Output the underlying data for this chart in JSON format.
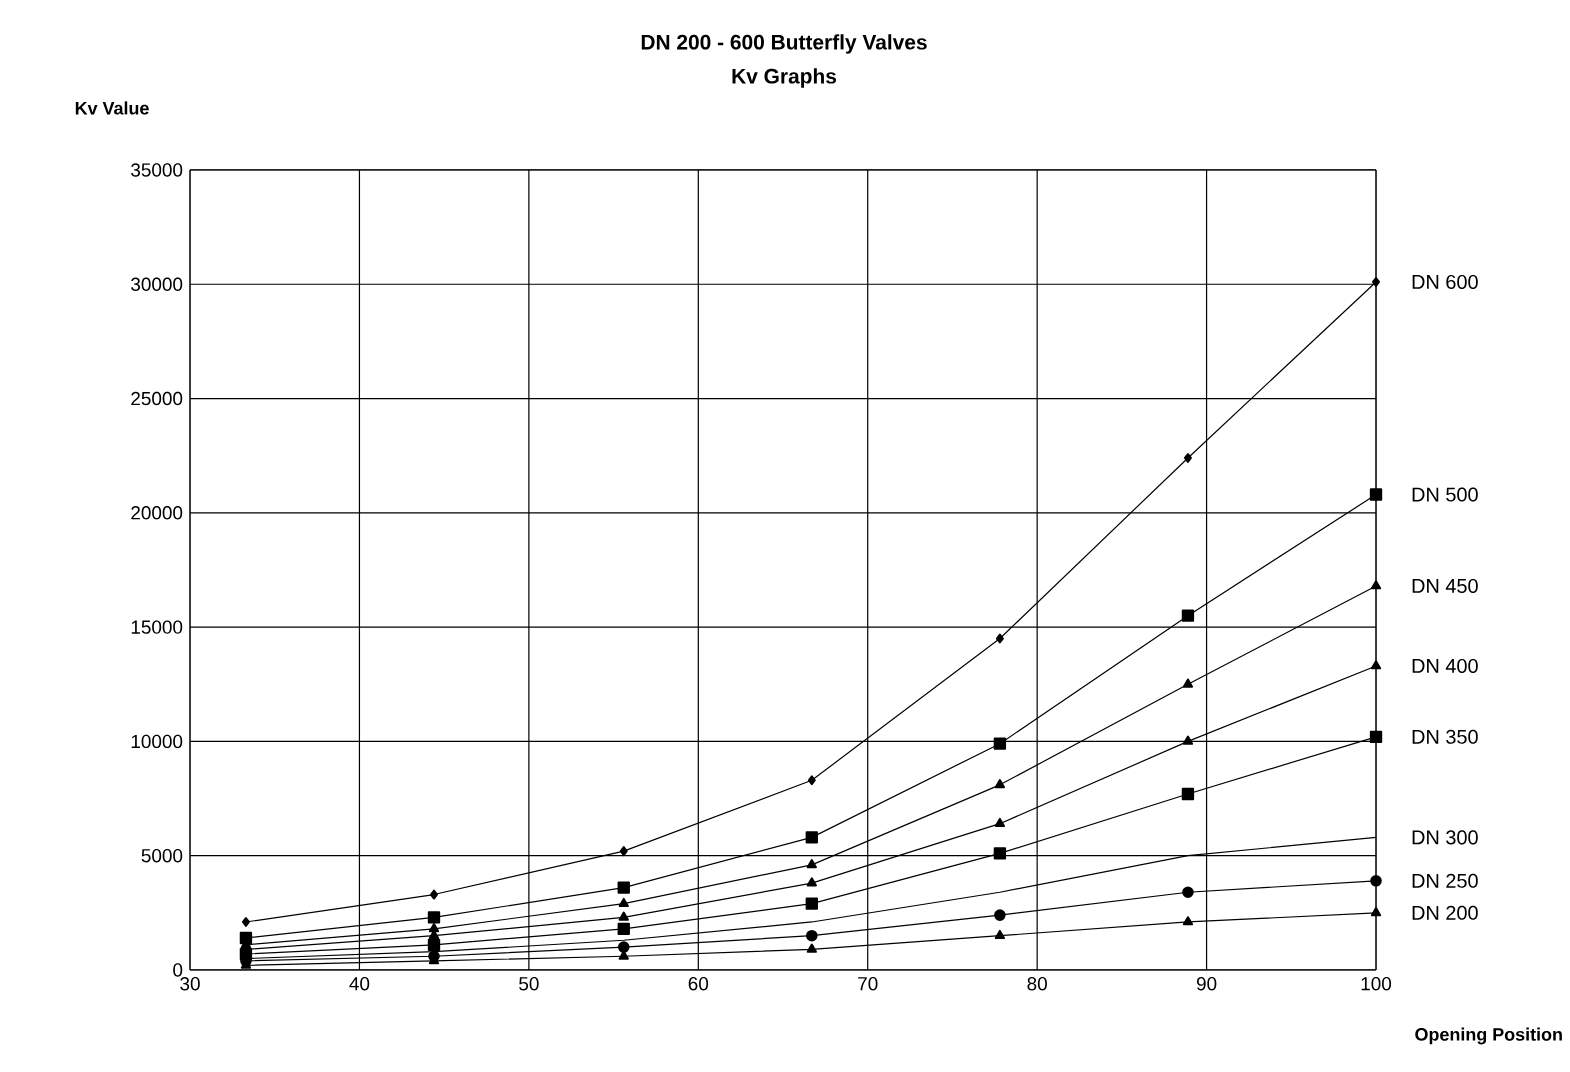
{
  "chart_data": {
    "type": "line",
    "title": "DN 200 - 600 Butterfly Valves",
    "subtitle": "Kv Graphs",
    "xlabel": "Opening Position",
    "ylabel": "Kv Value",
    "x": [
      33.3,
      44.4,
      55.6,
      66.7,
      77.8,
      88.9,
      100
    ],
    "series": [
      {
        "name": "DN 600",
        "color": "#000000",
        "marker": "diamond",
        "values": [
          2100,
          3300,
          5200,
          8300,
          14500,
          22400,
          30100
        ]
      },
      {
        "name": "DN 500",
        "color": "#000000",
        "marker": "square",
        "values": [
          1400,
          2300,
          3600,
          5800,
          9900,
          15500,
          20800
        ]
      },
      {
        "name": "DN 450",
        "color": "#000000",
        "marker": "triangle",
        "values": [
          1100,
          1800,
          2900,
          4600,
          8100,
          12500,
          16800
        ]
      },
      {
        "name": "DN 400",
        "color": "#000000",
        "marker": "triangle",
        "values": [
          900,
          1500,
          2300,
          3800,
          6400,
          10000,
          13300
        ]
      },
      {
        "name": "DN 350",
        "color": "#000000",
        "marker": "square",
        "values": [
          700,
          1100,
          1800,
          2900,
          5100,
          7700,
          10200
        ]
      },
      {
        "name": "DN 300",
        "color": "#000000",
        "marker": "none",
        "values": [
          500,
          800,
          1300,
          2100,
          3400,
          5000,
          5800
        ]
      },
      {
        "name": "DN 250",
        "color": "#000000",
        "marker": "circle",
        "values": [
          400,
          600,
          1000,
          1500,
          2400,
          3400,
          3900
        ]
      },
      {
        "name": "DN 200",
        "color": "#000000",
        "marker": "triangle",
        "values": [
          200,
          400,
          600,
          900,
          1500,
          2100,
          2500
        ]
      }
    ],
    "xlim": [
      30,
      100
    ],
    "ylim": [
      0,
      35000
    ],
    "xticks": [
      30,
      40,
      50,
      60,
      70,
      80,
      90,
      100
    ],
    "yticks": [
      0,
      5000,
      10000,
      15000,
      20000,
      25000,
      30000,
      35000
    ],
    "grid": true,
    "legend": "right",
    "line_style": "solid"
  }
}
